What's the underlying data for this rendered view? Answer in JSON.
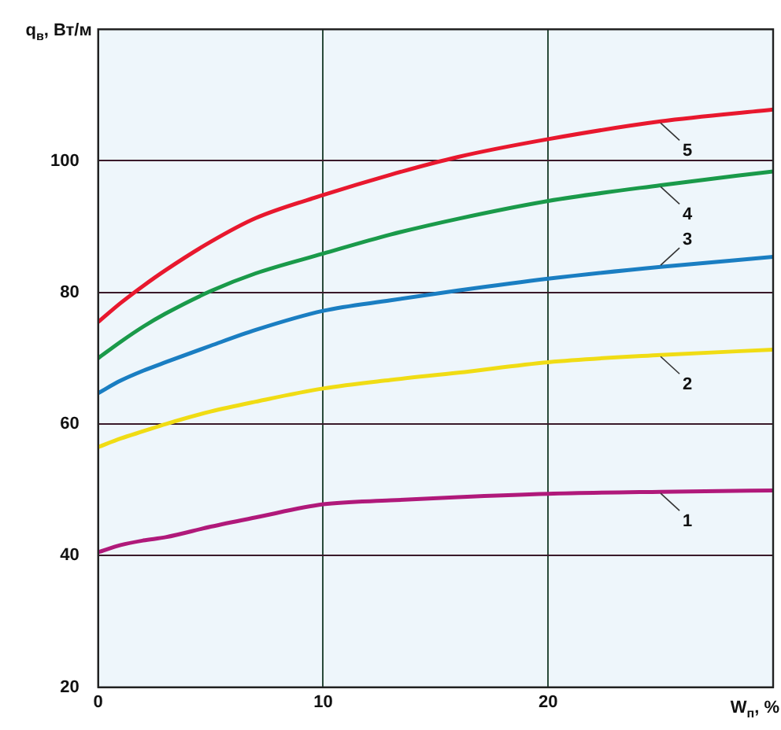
{
  "chart_data": {
    "type": "line",
    "xlabel": "W$_{п}$, %",
    "ylabel": "q$_{в}$, Вт/м",
    "x": [
      0,
      1,
      2,
      3,
      5,
      7,
      10,
      13,
      16,
      20,
      25,
      30
    ],
    "series": [
      {
        "name": "1",
        "color": "#b0197a",
        "values": [
          40.5,
          41.6,
          42.3,
          42.8,
          44.4,
          45.8,
          47.8,
          48.4,
          48.9,
          49.4,
          49.7,
          49.9
        ]
      },
      {
        "name": "2",
        "color": "#f0dc14",
        "values": [
          56.5,
          57.8,
          58.9,
          60,
          61.9,
          63.4,
          65.4,
          66.7,
          67.8,
          69.4,
          70.5,
          71.3
        ]
      },
      {
        "name": "3",
        "color": "#1a7ec2",
        "values": [
          64.7,
          66.6,
          68.1,
          69.4,
          71.9,
          74.3,
          77.2,
          78.8,
          80.3,
          82.1,
          83.9,
          85.4
        ]
      },
      {
        "name": "4",
        "color": "#1a9a4a",
        "values": [
          70,
          72.5,
          74.8,
          76.8,
          80.2,
          82.9,
          85.9,
          88.8,
          91.2,
          93.9,
          96.3,
          98.4
        ]
      },
      {
        "name": "5",
        "color": "#e8182e",
        "values": [
          75.5,
          78.4,
          81,
          83.4,
          87.7,
          91.3,
          94.8,
          97.9,
          100.6,
          103.3,
          106,
          107.8
        ]
      }
    ],
    "xlim": [
      0,
      30
    ],
    "xticks": [
      0,
      10,
      20,
      {
        "value": 30,
        "label": null
      }
    ],
    "ylim": [
      20,
      120
    ],
    "yticks": [
      20,
      40,
      60,
      80,
      100,
      {
        "value": 120,
        "label": null
      }
    ],
    "grid": true,
    "legend": false,
    "marker": "none",
    "line_style": "solid"
  }
}
